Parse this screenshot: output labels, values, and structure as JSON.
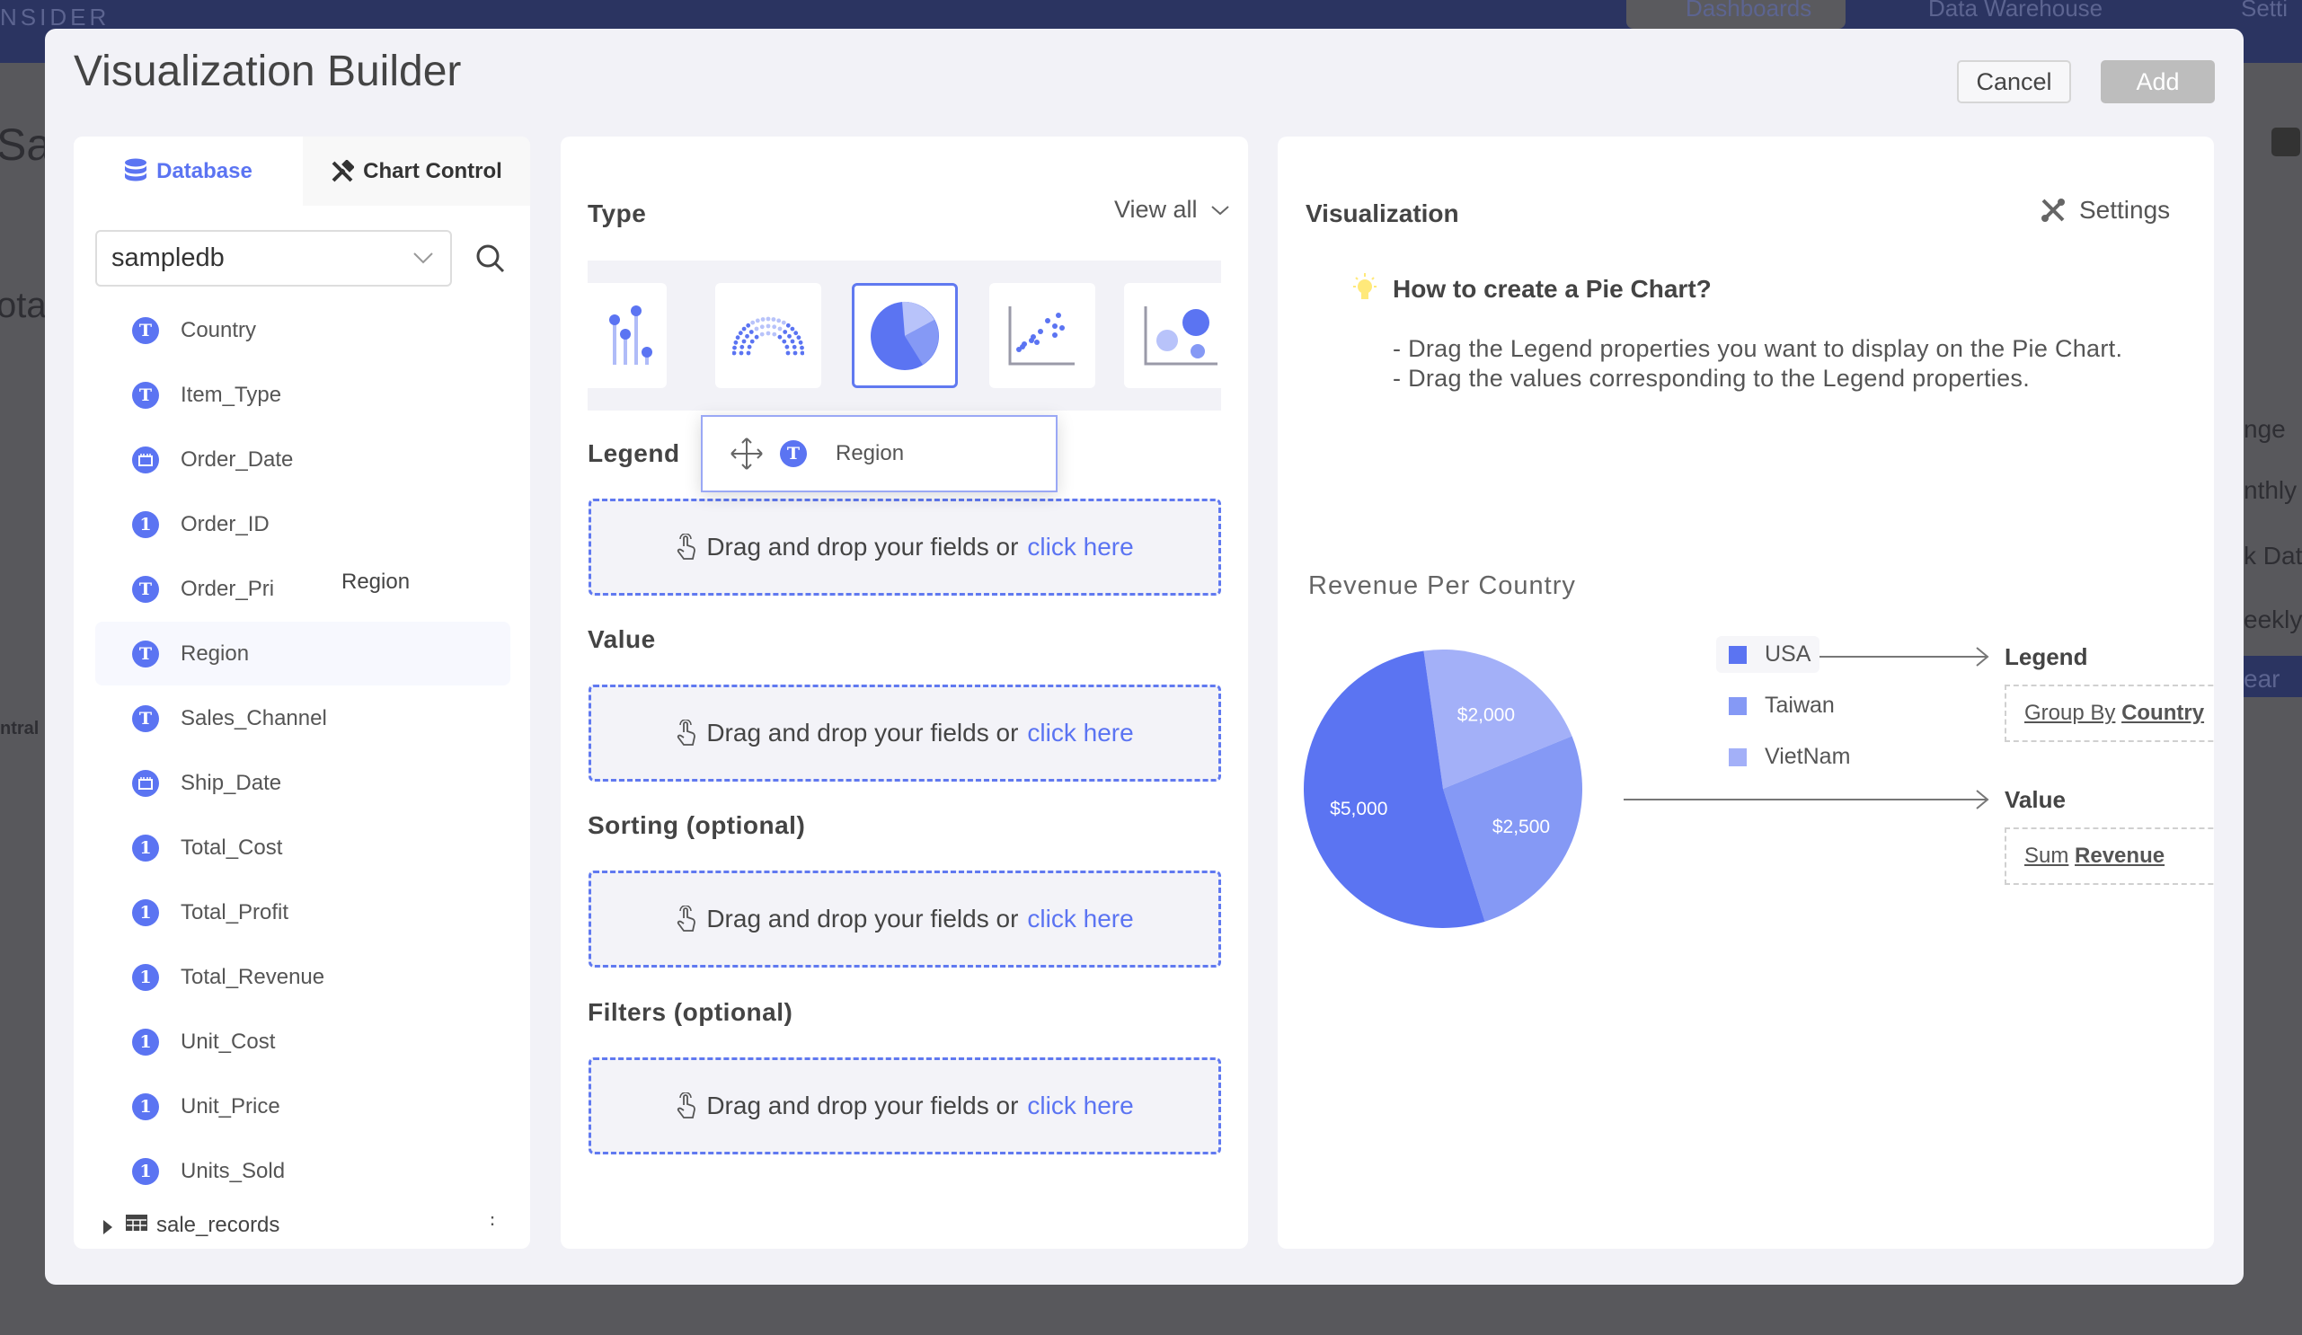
{
  "background": {
    "brand": "NSIDER",
    "nav": [
      "Dashboards",
      "Data Warehouse",
      "Setti"
    ],
    "left_fragments": [
      "Sal",
      "ota",
      "ntral"
    ],
    "right_fragments": [
      "nge",
      "nthly",
      "k Dat",
      "eekly",
      "ear"
    ]
  },
  "modal": {
    "title": "Visualization Builder",
    "cancel_label": "Cancel",
    "add_label": "Add"
  },
  "left_panel": {
    "tabs": [
      {
        "label": "Database",
        "icon": "database-icon",
        "active": true
      },
      {
        "label": "Chart Control",
        "icon": "tools-icon",
        "active": false
      }
    ],
    "database_select": "sampledb",
    "fields": [
      {
        "name": "Country",
        "type": "text"
      },
      {
        "name": "Item_Type",
        "type": "text"
      },
      {
        "name": "Order_Date",
        "type": "date"
      },
      {
        "name": "Order_ID",
        "type": "number"
      },
      {
        "name": "Order_Pri",
        "type": "text"
      },
      {
        "name": "Region",
        "type": "text",
        "active": true
      },
      {
        "name": "Sales_Channel",
        "type": "text"
      },
      {
        "name": "Ship_Date",
        "type": "date"
      },
      {
        "name": "Total_Cost",
        "type": "number"
      },
      {
        "name": "Total_Profit",
        "type": "number"
      },
      {
        "name": "Total_Revenue",
        "type": "number"
      },
      {
        "name": "Unit_Cost",
        "type": "number"
      },
      {
        "name": "Unit_Price",
        "type": "number"
      },
      {
        "name": "Units_Sold",
        "type": "number"
      }
    ],
    "table_name": "sale_records",
    "drag_ghost_text": "Region"
  },
  "middle_panel": {
    "type_label": "Type",
    "view_all_label": "View all",
    "chart_types": [
      "lollipop-chart",
      "parliament-chart",
      "pie-chart",
      "scatter-chart",
      "bubble-chart"
    ],
    "selected_type": "pie-chart",
    "sections": [
      {
        "label": "Legend"
      },
      {
        "label": "Value"
      },
      {
        "label": "Sorting (optional)"
      },
      {
        "label": "Filters (optional)"
      }
    ],
    "drop_text": "Drag and drop your fields or",
    "drop_link": "click here",
    "dragging_field": "Region"
  },
  "right_panel": {
    "title": "Visualization",
    "settings_label": "Settings",
    "howto_title": "How to create a Pie Chart?",
    "howto_steps": [
      "- Drag the Legend properties you want to display on the Pie Chart.",
      "- Drag the values corresponding to the Legend properties."
    ],
    "legend_heading": "Legend",
    "legend_box": {
      "prefix": "Group By",
      "field": "Country"
    },
    "value_heading": "Value",
    "value_box": {
      "prefix": "Sum",
      "field": "Revenue"
    }
  },
  "chart_data": {
    "type": "pie",
    "title": "Revenue Per Country",
    "categories": [
      "USA",
      "Taiwan",
      "VietNam"
    ],
    "values": [
      5000,
      2500,
      2000
    ],
    "labels": [
      "$5,000",
      "$2,500",
      "$2,000"
    ],
    "colors": [
      "#5b74f2",
      "#8599f5",
      "#a3b0f8"
    ],
    "legend_position": "right"
  },
  "colors": {
    "accent": "#5b74f2",
    "modal_bg": "#f2f2f7",
    "header": "#2b3461"
  }
}
